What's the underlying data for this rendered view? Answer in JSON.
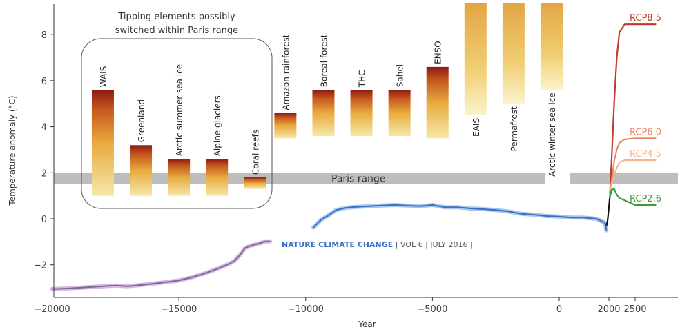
{
  "chart_data": {
    "type": "line",
    "xlabel": "Year",
    "ylabel": "Temperature anomaly (°C)",
    "xlim": [
      -20000,
      2900
    ],
    "ylim": [
      -3.4,
      9.4
    ],
    "x_ticks": [
      {
        "value": -20000,
        "label": "−20000"
      },
      {
        "value": -15000,
        "label": "−15000"
      },
      {
        "value": -10000,
        "label": "−10000"
      },
      {
        "value": -5000,
        "label": "−5000"
      },
      {
        "value": 0,
        "label": "0"
      },
      {
        "value": 2000,
        "label": "2000"
      },
      {
        "value": 2500,
        "label": "2500"
      }
    ],
    "y_ticks": [
      {
        "value": -2,
        "label": "−2"
      },
      {
        "value": 0,
        "label": "0"
      },
      {
        "value": 2,
        "label": "2"
      },
      {
        "value": 4,
        "label": "4"
      },
      {
        "value": 6,
        "label": "6"
      },
      {
        "value": 8,
        "label": "8"
      }
    ],
    "paris_range": {
      "label": "Paris range",
      "low": 1.5,
      "high": 2.0,
      "color": "#bdbdbd"
    },
    "box_title_line1": "Tipping elements possibly",
    "box_title_line2": "switched within Paris range",
    "tipping_elements": [
      {
        "name": "WAIS",
        "x": -18000,
        "low": 1.0,
        "high": 5.6,
        "open_top": false
      },
      {
        "name": "Greenland",
        "x": -16500,
        "low": 1.0,
        "high": 3.2,
        "open_top": false
      },
      {
        "name": "Arctic summer sea ice",
        "x": -15000,
        "low": 1.0,
        "high": 2.6,
        "open_top": false
      },
      {
        "name": "Alpine glaciers",
        "x": -13500,
        "low": 1.0,
        "high": 2.6,
        "open_top": false
      },
      {
        "name": "Coral reefs",
        "x": -12000,
        "low": 1.3,
        "high": 1.8,
        "open_top": false
      },
      {
        "name": "Amazon rainforest",
        "x": -10800,
        "low": 3.5,
        "high": 4.6,
        "open_top": false
      },
      {
        "name": "Boreal forest",
        "x": -9300,
        "low": 3.6,
        "high": 5.6,
        "open_top": false
      },
      {
        "name": "THC",
        "x": -7800,
        "low": 3.6,
        "high": 5.6,
        "open_top": false
      },
      {
        "name": "Sahel",
        "x": -6300,
        "low": 3.6,
        "high": 5.6,
        "open_top": false
      },
      {
        "name": "ENSO",
        "x": -4800,
        "low": 3.5,
        "high": 6.6,
        "open_top": false
      },
      {
        "name": "EAIS",
        "x": -3300,
        "low": 4.5,
        "high": 9.4,
        "open_top": true
      },
      {
        "name": "Permafrost",
        "x": -1800,
        "low": 5.0,
        "high": 9.4,
        "open_top": true
      },
      {
        "name": "Arctic winter sea ice",
        "x": -300,
        "low": 5.6,
        "high": 9.4,
        "open_top": true
      }
    ],
    "series": [
      {
        "color": "#7a6a9a",
        "x": [
          -20000,
          -19500,
          -19000,
          -18500,
          -18000,
          -17500,
          -17000,
          -16500,
          -16000,
          -15500,
          -15000,
          -14500,
          -14000,
          -13500,
          -13000,
          -12800,
          -12600,
          -12400,
          -12200,
          -12000,
          -11800,
          -11600,
          -11400
        ],
        "y": [
          -3.05,
          -3.03,
          -3.0,
          -2.97,
          -2.93,
          -2.9,
          -2.93,
          -2.88,
          -2.82,
          -2.75,
          -2.68,
          -2.55,
          -2.38,
          -2.18,
          -1.95,
          -1.82,
          -1.58,
          -1.28,
          -1.18,
          -1.12,
          -1.06,
          -0.98,
          -0.98
        ]
      },
      {
        "color": "#3b6fc2",
        "x": [
          -9700,
          -9400,
          -9100,
          -8800,
          -8400,
          -8000,
          -7500,
          -7000,
          -6500,
          -6000,
          -5500,
          -5000,
          -4500,
          -4000,
          -3500,
          -3000,
          -2500,
          -2000,
          -1500,
          -1000,
          -500,
          0,
          500,
          1000,
          1500,
          1800,
          1850,
          1900
        ],
        "y": [
          -0.38,
          -0.05,
          0.15,
          0.38,
          0.48,
          0.52,
          0.55,
          0.58,
          0.6,
          0.58,
          0.55,
          0.6,
          0.5,
          0.5,
          0.45,
          0.42,
          0.38,
          0.32,
          0.22,
          0.18,
          0.12,
          0.1,
          0.05,
          0.05,
          0.0,
          -0.15,
          -0.2,
          -0.5
        ]
      },
      {
        "color": "#111111",
        "x": [
          1900,
          1950,
          2000,
          2016
        ],
        "y": [
          -0.3,
          -0.05,
          0.5,
          0.9
        ]
      },
      {
        "name": "RCP8.5",
        "color": "#c0392b",
        "x": [
          2016,
          2050,
          2100,
          2150,
          2200,
          2300,
          2500,
          2900
        ],
        "y": [
          0.9,
          2.5,
          5.0,
          7.0,
          8.1,
          8.45,
          8.45,
          8.45
        ]
      },
      {
        "name": "RCP6.0",
        "color": "#e88a6a",
        "x": [
          2016,
          2050,
          2100,
          2150,
          2200,
          2300,
          2500,
          2900
        ],
        "y": [
          0.9,
          1.6,
          2.5,
          3.0,
          3.3,
          3.45,
          3.5,
          3.5
        ]
      },
      {
        "name": "RCP4.5",
        "color": "#f3b58f",
        "x": [
          2016,
          2050,
          2100,
          2150,
          2200,
          2300,
          2500,
          2900
        ],
        "y": [
          0.9,
          1.5,
          1.9,
          2.2,
          2.45,
          2.55,
          2.55,
          2.55
        ]
      },
      {
        "name": "RCP2.6",
        "color": "#3e9a3e",
        "x": [
          2016,
          2050,
          2100,
          2150,
          2200,
          2300,
          2500,
          2900
        ],
        "y": [
          0.9,
          1.25,
          1.3,
          1.05,
          0.9,
          0.8,
          0.6,
          0.6
        ]
      }
    ],
    "source_label": "NATURE CLIMATE CHANGE",
    "source_details": " | VOL 6 | JULY 2016 |",
    "source_color": "#3b6fc2",
    "bar_colors": {
      "top": "#8b1a10",
      "mid": "#d9822b",
      "bottom": "#f3e4a0"
    }
  }
}
